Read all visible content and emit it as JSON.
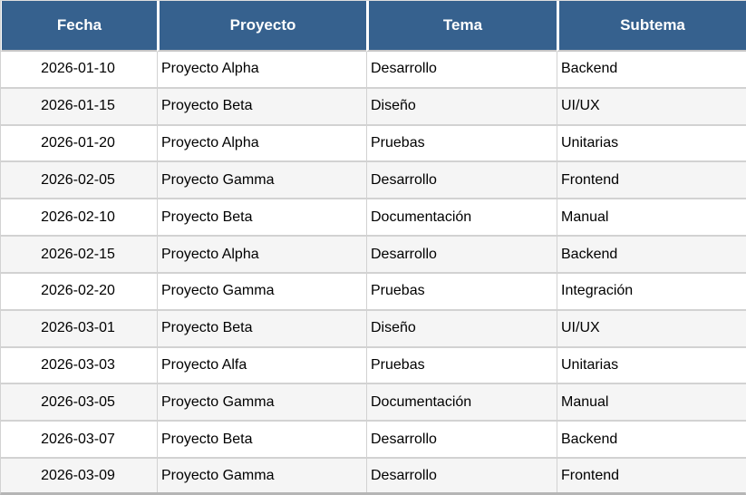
{
  "table": {
    "columns": [
      {
        "key": "fecha",
        "label": "Fecha"
      },
      {
        "key": "proyecto",
        "label": "Proyecto"
      },
      {
        "key": "tema",
        "label": "Tema"
      },
      {
        "key": "subtema",
        "label": "Subtema"
      }
    ],
    "rows": [
      [
        "2026-01-10",
        "Proyecto Alpha",
        "Desarrollo",
        "Backend"
      ],
      [
        "2026-01-15",
        "Proyecto Beta",
        "Diseño",
        "UI/UX"
      ],
      [
        "2026-01-20",
        "Proyecto Alpha",
        "Pruebas",
        "Unitarias"
      ],
      [
        "2026-02-05",
        "Proyecto Gamma",
        "Desarrollo",
        "Frontend"
      ],
      [
        "2026-02-10",
        "Proyecto Beta",
        "Documentación",
        "Manual"
      ],
      [
        "2026-02-15",
        "Proyecto Alpha",
        "Desarrollo",
        "Backend"
      ],
      [
        "2026-02-20",
        "Proyecto Gamma",
        "Pruebas",
        "Integración"
      ],
      [
        "2026-03-01",
        "Proyecto Beta",
        "Diseño",
        "UI/UX"
      ],
      [
        "2026-03-03",
        "Proyecto Alfa",
        "Pruebas",
        "Unitarias"
      ],
      [
        "2026-03-05",
        "Proyecto Gamma",
        "Documentación",
        "Manual"
      ],
      [
        "2026-03-07",
        "Proyecto Beta",
        "Desarrollo",
        "Backend"
      ],
      [
        "2026-03-09",
        "Proyecto Gamma",
        "Desarrollo",
        "Frontend"
      ]
    ],
    "colors": {
      "header_bg": "#36618E",
      "header_text": "#FFFFFF",
      "row_bg": "#FFFFFF",
      "row_alt_bg": "#F5F5F5",
      "grid_line": "#D2D2D2",
      "outer_bottom": "#B5B5B5",
      "cell_text": "#000000"
    }
  }
}
